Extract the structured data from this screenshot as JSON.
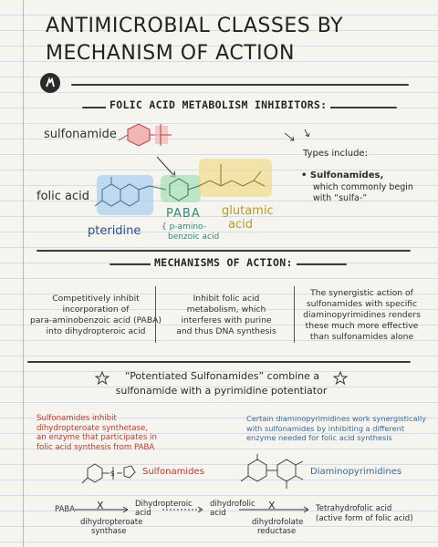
{
  "title": {
    "line1": "ANTIMICROBIAL CLASSES BY",
    "line2": "MECHANISM OF ACTION"
  },
  "section1": {
    "heading": "FOLIC ACID METABOLISM INHIBITORS:",
    "sulfonamide_label": "sulfonamide",
    "folic_acid_label": "folic acid",
    "pteridine_label": "pteridine",
    "paba_label": "PABA",
    "paba_sub1": "{ p-amino-",
    "paba_sub2": "benzoic acid",
    "glutamic_line1": "glutamic",
    "glutamic_line2": "acid",
    "types_title": "Types include:",
    "types_item_bold": "• Sulfonamides,",
    "types_item_line2": "which commonly begin",
    "types_item_line3": "with “sulfa-”"
  },
  "section2": {
    "heading": "MECHANISMS OF ACTION:",
    "col1": [
      "Competitively inhibit",
      "incorporation of",
      "para-aminobenzoic acid (PABA)",
      "into dihydropteroic acid"
    ],
    "col2": [
      "Inhibit folic acid",
      "metabolism, which",
      "interferes with purine",
      "and thus DNA synthesis"
    ],
    "col3": [
      "The synergistic action of",
      "sulfonamides with specific",
      "diaminopyrimidines renders",
      "these much more effective",
      "than sulfonamides alone"
    ]
  },
  "section3": {
    "potentiated_line1": "“Potentiated Sulfonamides” combine a",
    "potentiated_line2": "sulfonamide with a pyrimidine potentiator",
    "left_note": [
      "Sulfonamides inhibit",
      "dihydropteroate synthetase,",
      "an enzyme that participates in",
      "folic acid synthesis from PABA"
    ],
    "right_note": [
      "Certain diaminopyrimidines work synergistically",
      "with sulfonamides by inhibiting a different",
      "enzyme needed for folic acid synthesis"
    ],
    "sulfonamides_label": "Sulfonamides",
    "diaminopyrimidines_label": "Diaminopyrimidines",
    "pathway": {
      "paba": "PABA",
      "dihydropteroic_1": "Dihydropteroic",
      "dihydropteroic_2": "acid",
      "dihydrofolic_1": "dihydrofolic",
      "dihydrofolic_2": "acid",
      "tetrahydrofolic_1": "Tetrahydrofolic acid",
      "tetrahydrofolic_2": "(active form of folic acid)",
      "enzyme1_1": "dihydropteroate",
      "enzyme1_2": "synthase",
      "enzyme2_1": "dihydrofolate",
      "enzyme2_2": "reductase",
      "block": "X"
    },
    "struct_labels": {
      "nh2": "NH₂",
      "h2n": "H₂N",
      "s": "S",
      "h": "H",
      "n": "N",
      "o": "O"
    }
  },
  "colors": {
    "sulfa": "#e58a8a",
    "pteridine_blue": "#7fb3e0",
    "paba_green": "#8fd1a2",
    "glutamic_yellow": "#e9d27a",
    "red_text": "#c0392b",
    "blue_text": "#3a6a9a"
  }
}
